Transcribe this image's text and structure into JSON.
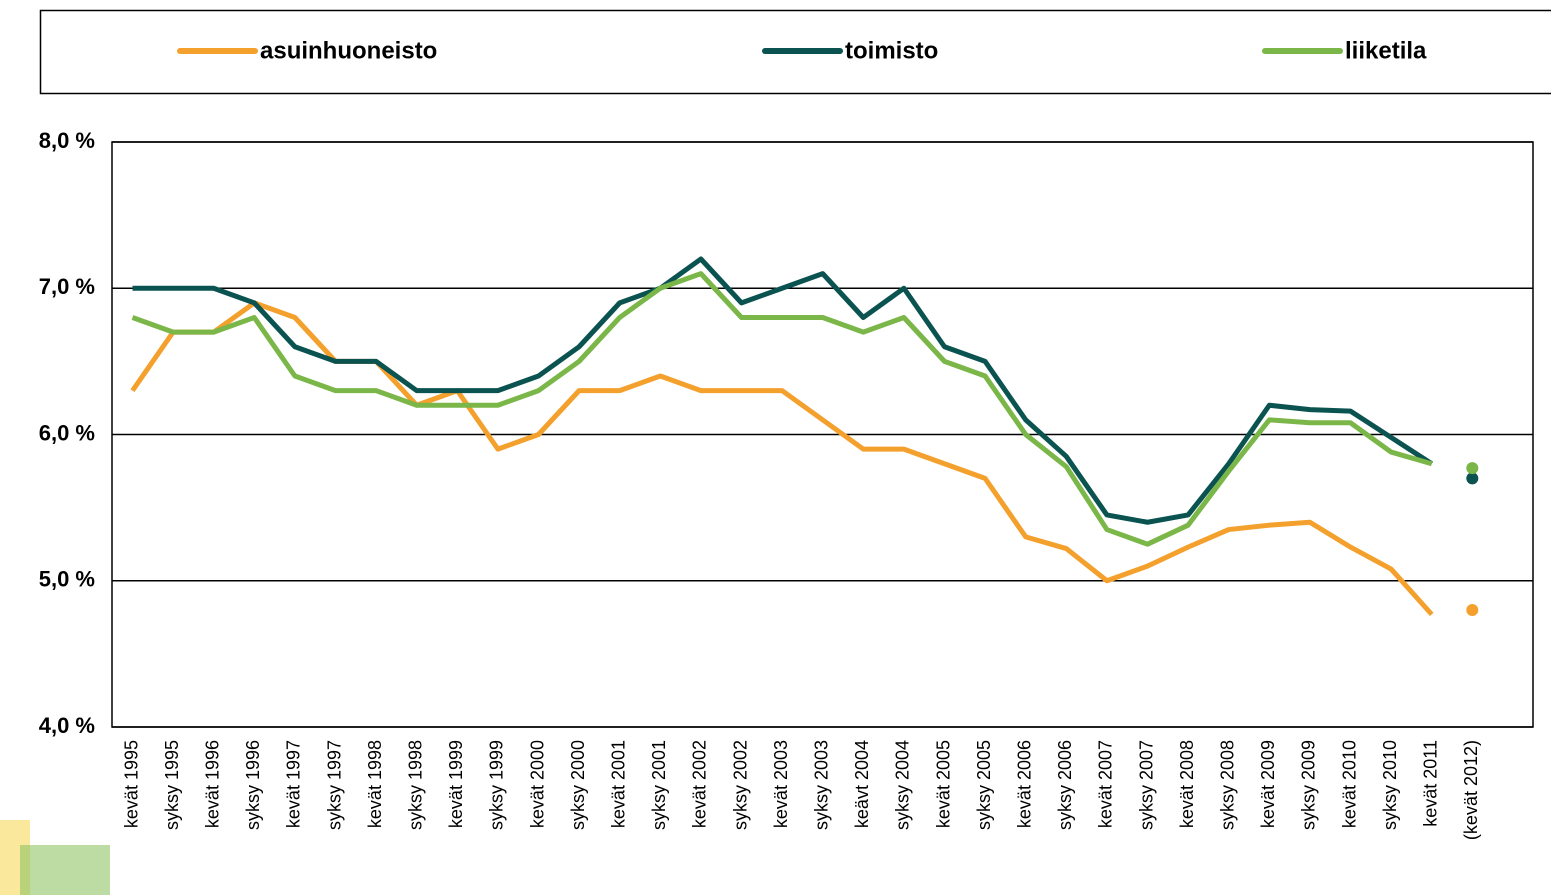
{
  "chart_data": {
    "type": "line",
    "categories": [
      "kevät 1995",
      "syksy 1995",
      "kevät 1996",
      "syksy 1996",
      "kevät 1997",
      "syksy 1997",
      "kevät 1998",
      "syksy 1998",
      "kevät 1999",
      "syksy 1999",
      "kevät 2000",
      "syksy 2000",
      "kevät 2001",
      "syksy 2001",
      "kevät 2002",
      "syksy 2002",
      "kevät 2003",
      "syksy 2003",
      "keävt 2004",
      "syksy 2004",
      "kevät 2005",
      "syksy 2005",
      "kevät 2006",
      "syksy 2006",
      "kevät 2007",
      "syksy 2007",
      "kevät 2008",
      "syksy 2008",
      "kevät 2009",
      "syksy 2009",
      "kevät 2010",
      "syksy 2010",
      "kevät 2011",
      "(kevät 2012)"
    ],
    "series": [
      {
        "name": "asuinhuoneisto",
        "color": "#f4a02d",
        "values": [
          6.3,
          6.7,
          6.7,
          6.9,
          6.8,
          6.5,
          6.5,
          6.2,
          6.3,
          5.9,
          6.0,
          6.3,
          6.3,
          6.4,
          6.3,
          6.3,
          6.3,
          6.1,
          5.9,
          5.9,
          5.8,
          5.7,
          5.3,
          5.22,
          5.0,
          5.1,
          5.23,
          5.35,
          5.38,
          5.4,
          5.23,
          5.08,
          4.77,
          4.8
        ]
      },
      {
        "name": "toimisto",
        "color": "#0b5350",
        "values": [
          7.0,
          7.0,
          7.0,
          6.9,
          6.6,
          6.5,
          6.5,
          6.3,
          6.3,
          6.3,
          6.4,
          6.6,
          6.9,
          7.0,
          7.2,
          6.9,
          7.0,
          7.1,
          6.8,
          7.0,
          6.6,
          6.5,
          6.1,
          5.85,
          5.45,
          5.4,
          5.45,
          5.8,
          6.2,
          6.17,
          6.16,
          5.98,
          5.8,
          5.7
        ]
      },
      {
        "name": "liiketila",
        "color": "#7ab648",
        "values": [
          6.8,
          6.7,
          6.7,
          6.8,
          6.4,
          6.3,
          6.3,
          6.2,
          6.2,
          6.2,
          6.3,
          6.5,
          6.8,
          7.0,
          7.1,
          6.8,
          6.8,
          6.8,
          6.7,
          6.8,
          6.5,
          6.4,
          6.0,
          5.78,
          5.35,
          5.25,
          5.38,
          5.75,
          6.1,
          6.08,
          6.08,
          5.88,
          5.8,
          5.77
        ]
      }
    ],
    "ylim": [
      4,
      8
    ],
    "yticks": [
      {
        "value": 4,
        "label": "4,0 %"
      },
      {
        "value": 5,
        "label": "5,0 %"
      },
      {
        "value": 6,
        "label": "6,0 %"
      },
      {
        "value": 7,
        "label": "7,0 %"
      },
      {
        "value": 8,
        "label": "8,0 %"
      }
    ],
    "grid": true,
    "legend": "top"
  }
}
